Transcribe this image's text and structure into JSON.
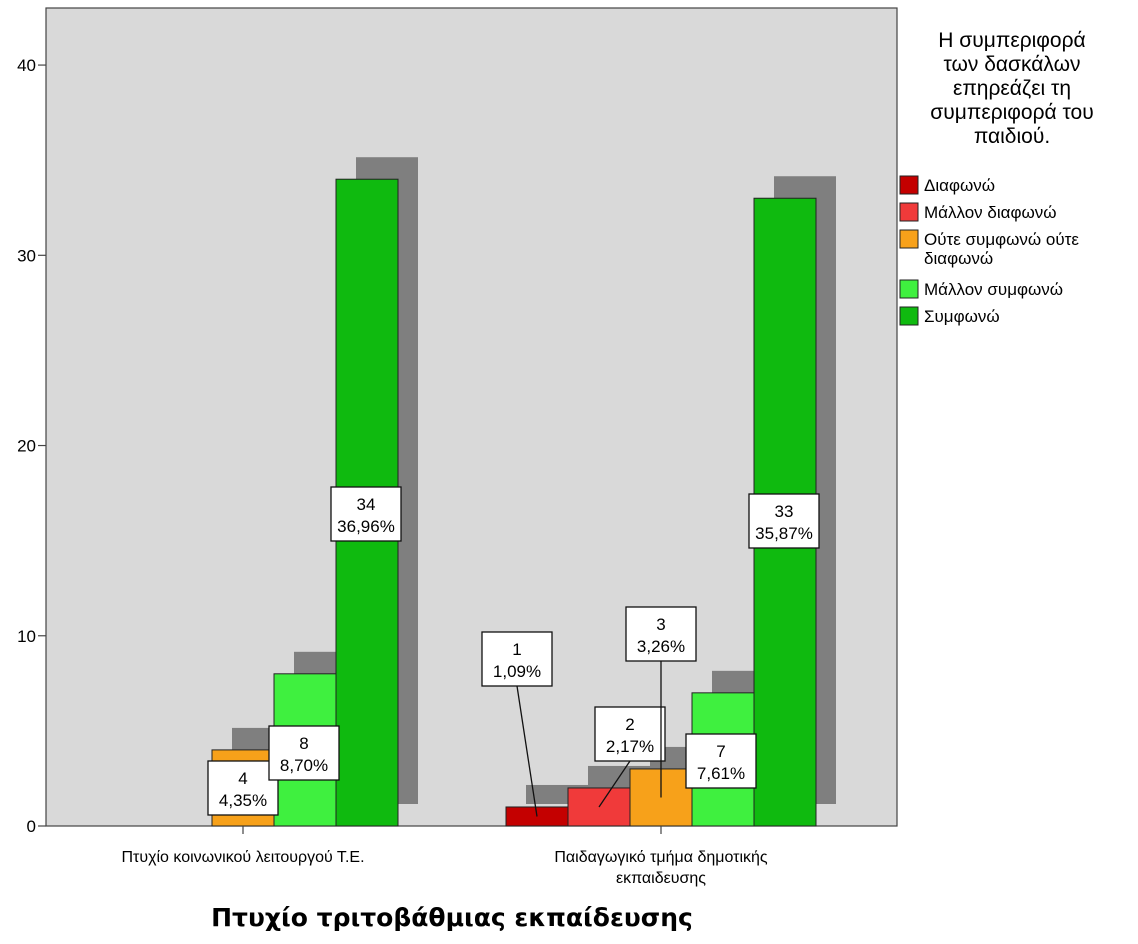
{
  "chart_data": {
    "type": "bar",
    "title": "",
    "xlabel": "Πτυχίο τριτοβάθμιας εκπαίδευσης",
    "ylabel": "",
    "ylim": [
      0,
      43
    ],
    "yticks": [
      0,
      10,
      20,
      30,
      40
    ],
    "grid": false,
    "legend_position": "right",
    "legend_title": "Η συμπεριφορά των δασκάλων επηρεάζει τη συμπεριφορά του παιδιού.",
    "legend_title_lines": [
      "Η συμπεριφορά",
      "των δασκάλων",
      "επηρεάζει τη",
      "συμπεριφορά του",
      "παιδιού."
    ],
    "categories": [
      {
        "label_lines": [
          "Πτυχίο κοινωνικού λειτουργού Τ.Ε."
        ]
      },
      {
        "label_lines": [
          "Παιδαγωγικό τμήμα δημοτικής",
          "εκπαιδευσης"
        ]
      }
    ],
    "series": [
      {
        "name": "Διαφωνώ",
        "legend_lines": [
          "Διαφωνώ"
        ],
        "color": "#c40000",
        "values": [
          0,
          1
        ],
        "labels": [
          null,
          [
            "1",
            "1,09%"
          ]
        ]
      },
      {
        "name": "Μάλλον διαφωνώ",
        "legend_lines": [
          "Μάλλον διαφωνώ"
        ],
        "color": "#f03a3a",
        "values": [
          0,
          2
        ],
        "labels": [
          null,
          [
            "2",
            "2,17%"
          ]
        ]
      },
      {
        "name": "Ούτε συμφωνώ ούτε διαφωνώ",
        "legend_lines": [
          "Ούτε συμφωνώ ούτε",
          "διαφωνώ"
        ],
        "color": "#f7a11a",
        "values": [
          4,
          3
        ],
        "labels": [
          [
            "4",
            "4,35%"
          ],
          [
            "3",
            "3,26%"
          ]
        ]
      },
      {
        "name": "Μάλλον συμφωνώ",
        "legend_lines": [
          "Μάλλον συμφωνώ"
        ],
        "color": "#3ff03f",
        "values": [
          8,
          7
        ],
        "labels": [
          [
            "8",
            "8,70%"
          ],
          [
            "7",
            "7,61%"
          ]
        ]
      },
      {
        "name": "Συμφωνώ",
        "legend_lines": [
          "Συμφωνώ"
        ],
        "color": "#0fba0f",
        "values": [
          34,
          33
        ],
        "labels": [
          [
            "34",
            "36,96%"
          ],
          [
            "33",
            "35,87%"
          ]
        ]
      }
    ]
  }
}
